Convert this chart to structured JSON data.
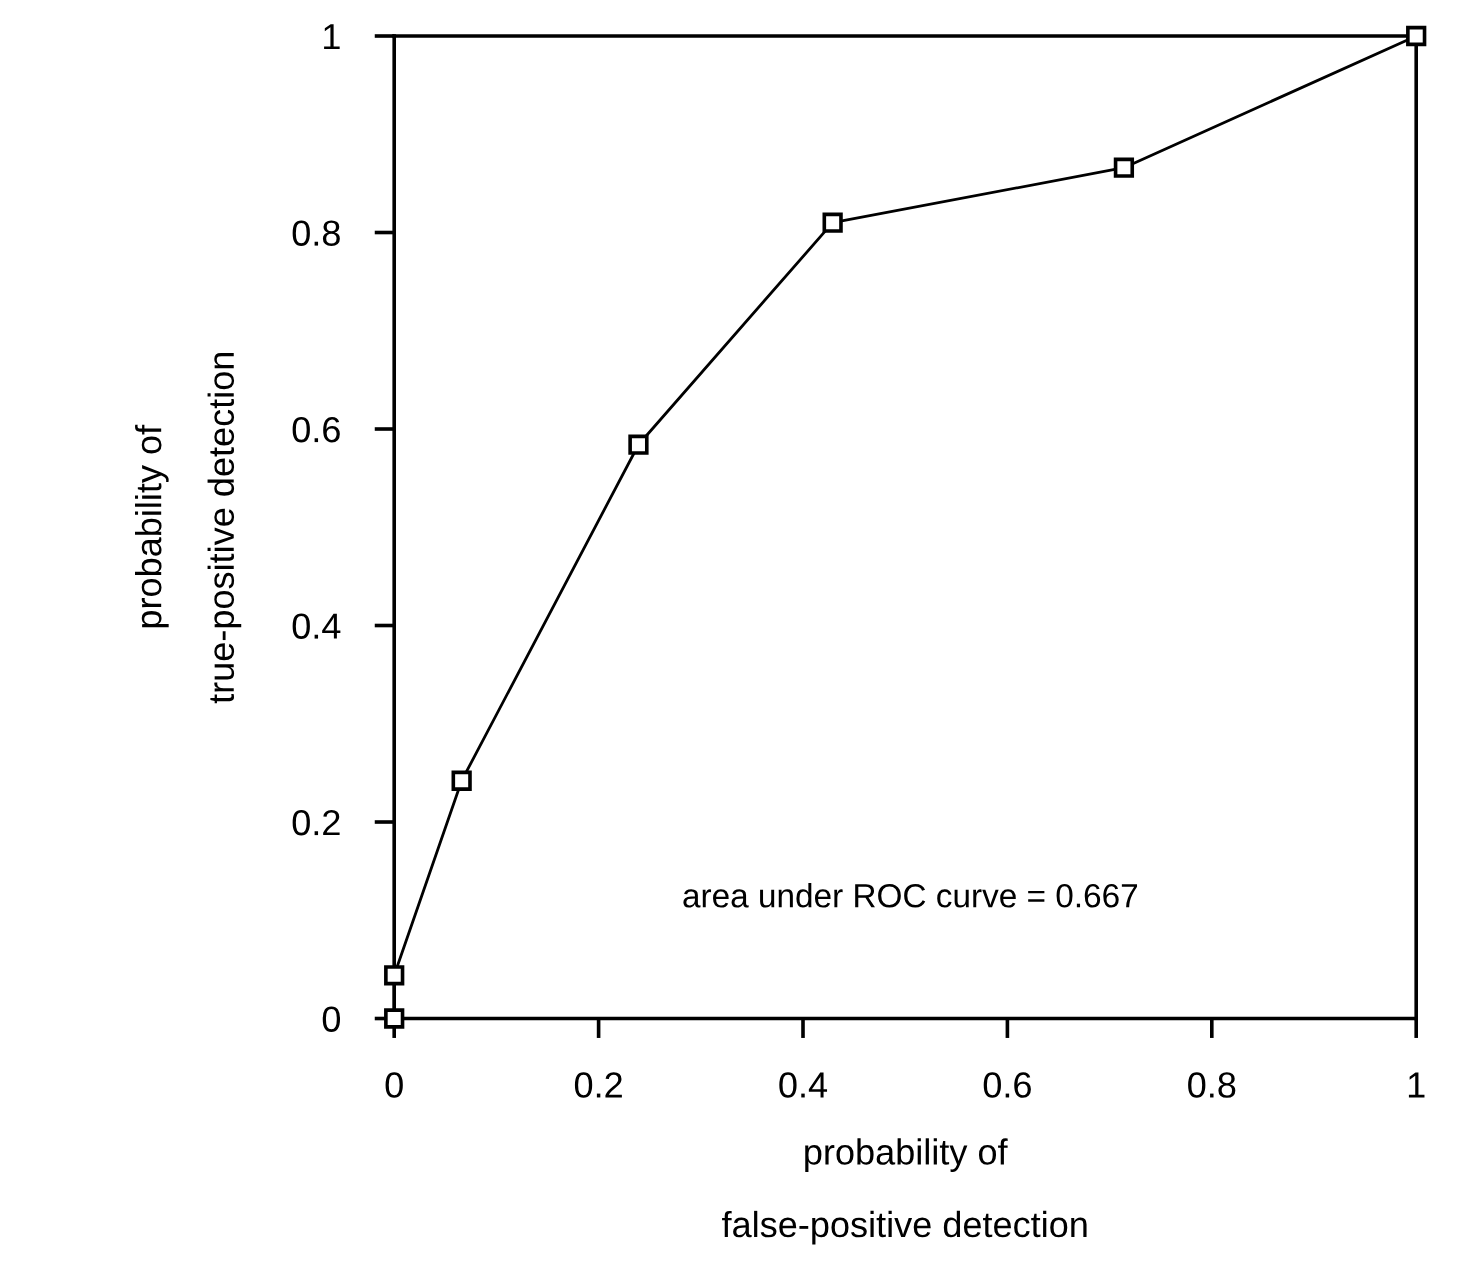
{
  "chart_data": {
    "type": "line",
    "xlabel": "probability of\n\nfalse-positive detection",
    "ylabel": "probability of\n\ntrue-positive detection",
    "x": [
      0,
      0,
      0.066,
      0.239,
      0.429,
      0.714,
      1
    ],
    "values": [
      0,
      0.044,
      0.242,
      0.584,
      0.81,
      0.866,
      1
    ],
    "color": "#000000",
    "marker": "square",
    "line_style": "solid",
    "xlim": [
      0,
      1
    ],
    "ylim": [
      0,
      1
    ],
    "xticks": [
      0,
      0.2,
      0.4,
      0.6,
      0.8,
      1
    ],
    "yticks": [
      0,
      0.2,
      0.4,
      0.6,
      0.8,
      1
    ],
    "grid": false,
    "annotations": [
      "area under ROC curve = 0.667"
    ]
  }
}
